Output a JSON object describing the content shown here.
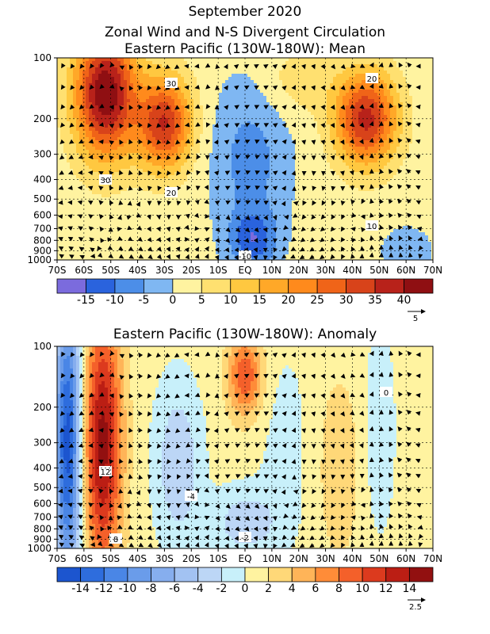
{
  "figure": {
    "title": "September 2020",
    "subtitle_line1": "Zonal Wind and N-S Divergent Circulation",
    "subtitle_line2": "Eastern Pacific (130W-180W): Mean"
  },
  "chart_data": [
    {
      "type": "heatmap",
      "title": "Eastern Pacific (130W-180W): Mean",
      "x_ticks": [
        "70S",
        "60S",
        "50S",
        "40S",
        "30S",
        "20S",
        "10S",
        "EQ",
        "10N",
        "20N",
        "30N",
        "40N",
        "50N",
        "60N",
        "70N"
      ],
      "y_ticks": [
        "100",
        "200",
        "300",
        "400",
        "500",
        "600",
        "700",
        "800",
        "900",
        "1000"
      ],
      "y_scale": "log-pressure",
      "xlim": [
        -70,
        70
      ],
      "ylim": [
        1000,
        100
      ],
      "colorbar": {
        "levels": [
          -20,
          -15,
          -10,
          -5,
          0,
          5,
          10,
          15,
          20,
          25,
          30,
          35,
          40,
          45
        ],
        "labels": [
          "-15",
          "-10",
          "-5",
          "0",
          "5",
          "10",
          "15",
          "20",
          "25",
          "30",
          "35",
          "40"
        ],
        "colors": [
          "#7b6bdd",
          "#2a63dd",
          "#4c8ee8",
          "#7fb7f2",
          "#fff3a0",
          "#ffe070",
          "#ffc840",
          "#ffa828",
          "#ff8a1c",
          "#f06418",
          "#d8431a",
          "#b8221a",
          "#8f0f12"
        ]
      },
      "contour_labels": [
        "30",
        "30",
        "20",
        "20",
        "10",
        "-10"
      ],
      "vector_reference": "5",
      "features": [
        {
          "lat": -52,
          "p": 150,
          "value": 43
        },
        {
          "lat": -30,
          "p": 210,
          "value": 37
        },
        {
          "lat": 45,
          "p": 200,
          "value": 37
        },
        {
          "lat": 3,
          "p": 800,
          "value": -11
        },
        {
          "lat": 2,
          "p": 320,
          "value": -3
        }
      ]
    },
    {
      "type": "heatmap",
      "title": "Eastern Pacific (130W-180W): Anomaly",
      "x_ticks": [
        "70S",
        "60S",
        "50S",
        "40S",
        "30S",
        "20S",
        "10S",
        "EQ",
        "10N",
        "20N",
        "30N",
        "40N",
        "50N",
        "60N",
        "70N"
      ],
      "y_ticks": [
        "100",
        "200",
        "300",
        "400",
        "500",
        "600",
        "700",
        "800",
        "900",
        "1000"
      ],
      "y_scale": "log-pressure",
      "xlim": [
        -70,
        70
      ],
      "ylim": [
        1000,
        100
      ],
      "colorbar": {
        "levels": [
          -16,
          -14,
          -12,
          -10,
          -8,
          -6,
          -4,
          -2,
          0,
          2,
          4,
          6,
          8,
          10,
          12,
          14,
          16
        ],
        "labels": [
          "-14",
          "-12",
          "-10",
          "-8",
          "-6",
          "-4",
          "-2",
          "0",
          "2",
          "4",
          "6",
          "8",
          "10",
          "12",
          "14"
        ],
        "colors": [
          "#1c55cf",
          "#2e6ddd",
          "#4a86e6",
          "#6a9cea",
          "#86aeee",
          "#a2c2f2",
          "#bcd6f6",
          "#c8f0fa",
          "#fff3a0",
          "#ffd878",
          "#ffb458",
          "#ff8c38",
          "#f4602a",
          "#dc3a1e",
          "#bb1e14",
          "#921010"
        ]
      },
      "contour_labels": [
        "12",
        "-4",
        "-2",
        "0",
        "8"
      ],
      "vector_reference": "2.5",
      "features": [
        {
          "lat": -52,
          "p": 280,
          "value": 13
        },
        {
          "lat": -65,
          "p": 300,
          "value": -15
        },
        {
          "lat": 0,
          "p": 140,
          "value": 8
        },
        {
          "lat": -25,
          "p": 400,
          "value": -4
        },
        {
          "lat": 0,
          "p": 750,
          "value": -4
        },
        {
          "lat": 50,
          "p": 250,
          "value": -2
        },
        {
          "lat": 35,
          "p": 400,
          "value": 2
        }
      ]
    }
  ]
}
